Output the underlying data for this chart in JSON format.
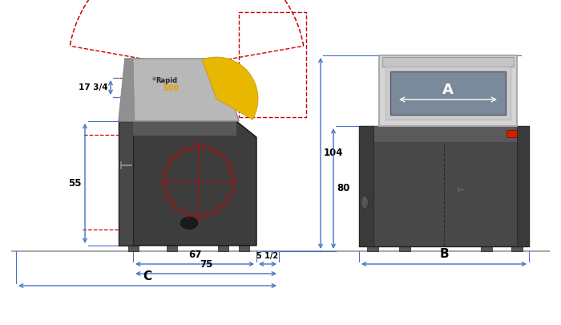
{
  "bg_color": "#ffffff",
  "dim_color": "#4472C4",
  "red_dashed": "#cc0000",
  "machine_dark": "#3d3d3d",
  "machine_mid": "#555555",
  "machine_side": "#4a4a4a",
  "machine_top_strip": "#5a5a5a",
  "hopper_gray": "#b8b8b8",
  "hopper_dark": "#888888",
  "yellow": "#e8b800",
  "ground_color": "#aaaaaa",
  "labels": {
    "17_3_4": "17 3/4",
    "55": "55",
    "104": "104",
    "80": "80",
    "67": "67",
    "5_1_2": "5 1/2",
    "75": "75",
    "C": "C",
    "B": "B",
    "A": "A"
  }
}
